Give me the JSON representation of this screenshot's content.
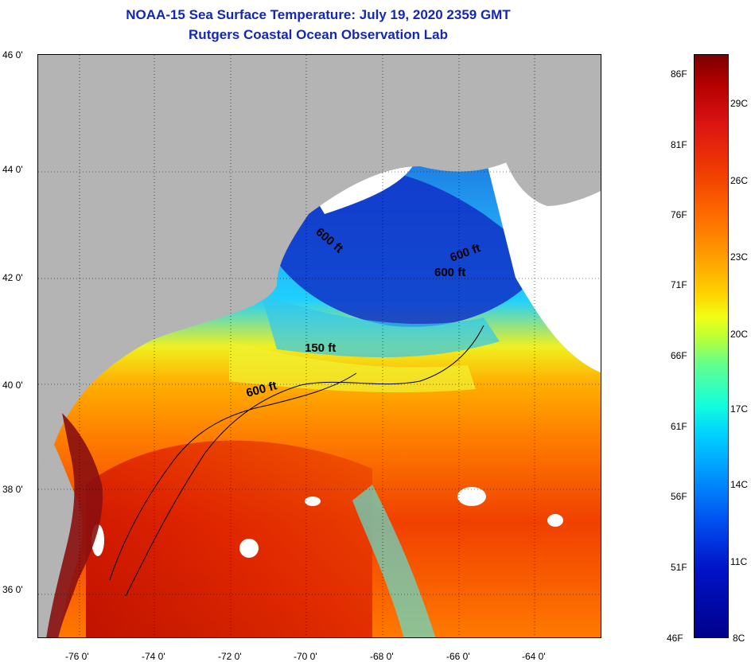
{
  "title_line1": "NOAA-15 Sea Surface Temperature:  July 19, 2020 2359 GMT",
  "title_line2": "Rutgers Coastal Ocean Observation Lab",
  "map": {
    "lon_labels": [
      "-76 0'",
      "-74 0'",
      "-72 0'",
      "-70 0'",
      "-68 0'",
      "-66 0'",
      "-64 0'"
    ],
    "lat_labels": [
      "46 0'",
      "44 0'",
      "42 0'",
      "40 0'",
      "38 0'",
      "36 0'"
    ],
    "depth_labels": [
      "600 ft",
      "150 ft",
      "600 ft",
      "600 ft",
      "600 ft"
    ],
    "land_color": "#b4b4b4",
    "cloud_color": "#ffffff"
  },
  "colorbar": {
    "fahrenheit": [
      "86F",
      "81F",
      "76F",
      "71F",
      "66F",
      "61F",
      "56F",
      "51F",
      "46F"
    ],
    "celsius": [
      "29C",
      "26C",
      "23C",
      "20C",
      "17C",
      "14C",
      "11C",
      "8C"
    ]
  }
}
